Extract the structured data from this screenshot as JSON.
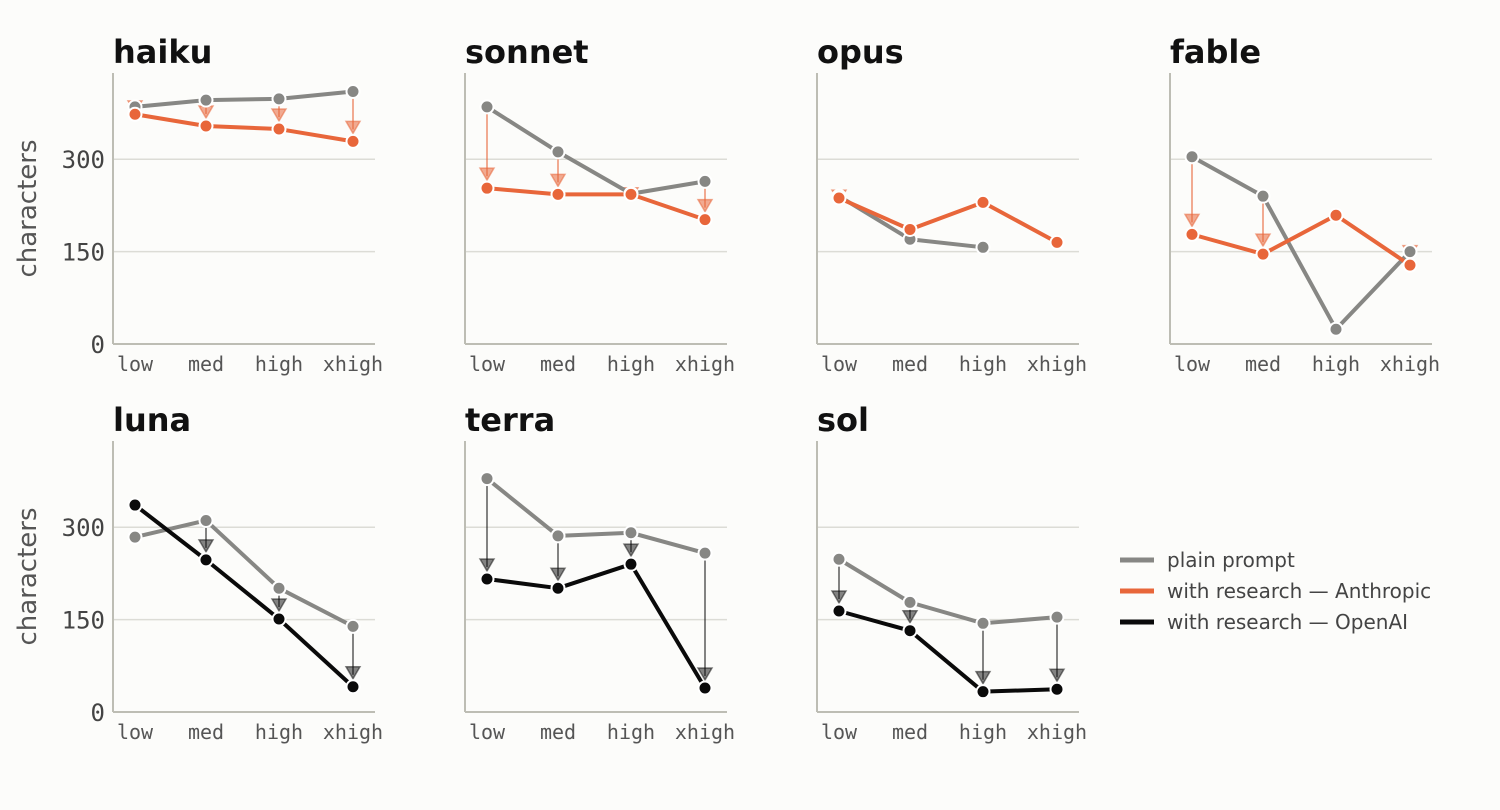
{
  "chart_data": {
    "type": "line",
    "x_categories": [
      "low",
      "med",
      "high",
      "xhigh"
    ],
    "ylabel": "characters",
    "yticks": [
      0,
      150,
      300
    ],
    "ylim": [
      0,
      440
    ],
    "grid": "horizontal",
    "legend_position": "right",
    "series_legend": [
      {
        "key": "plain",
        "label": "plain prompt",
        "color": "#878784"
      },
      {
        "key": "anthropic",
        "label": "with research — Anthropic",
        "color": "#e8663a"
      },
      {
        "key": "openai",
        "label": "with research — OpenAI",
        "color": "#0a0a0a"
      }
    ],
    "panels": [
      {
        "title": "haiku",
        "research_key": "anthropic",
        "plain": [
          385,
          396,
          398,
          410
        ],
        "research": [
          373,
          354,
          349,
          329
        ]
      },
      {
        "title": "sonnet",
        "research_key": "anthropic",
        "plain": [
          385,
          312,
          244,
          264
        ],
        "research": [
          253,
          243,
          243,
          202
        ]
      },
      {
        "title": "opus",
        "research_key": "anthropic",
        "plain": [
          240,
          170,
          157,
          null
        ],
        "research": [
          237,
          186,
          230,
          165
        ]
      },
      {
        "title": "fable",
        "research_key": "anthropic",
        "plain": [
          304,
          240,
          24,
          150
        ],
        "research": [
          178,
          146,
          209,
          128
        ]
      },
      {
        "title": "luna",
        "research_key": "openai",
        "plain": [
          284,
          311,
          201,
          139
        ],
        "research": [
          336,
          247,
          151,
          41
        ]
      },
      {
        "title": "terra",
        "research_key": "openai",
        "plain": [
          379,
          286,
          291,
          258
        ],
        "research": [
          216,
          201,
          240,
          39
        ]
      },
      {
        "title": "sol",
        "research_key": "openai",
        "plain": [
          248,
          178,
          144,
          154
        ],
        "research": [
          164,
          132,
          33,
          37
        ]
      }
    ]
  }
}
